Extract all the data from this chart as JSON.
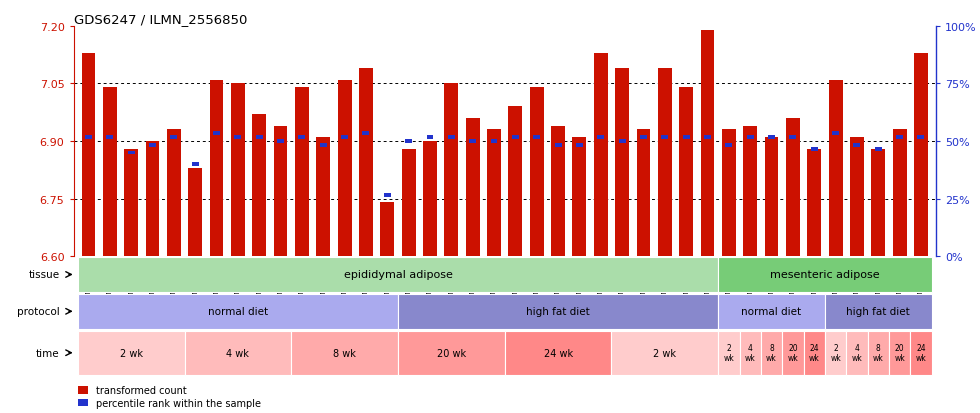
{
  "title": "GDS6247 / ILMN_2556850",
  "samples": [
    "GSM971546",
    "GSM971547",
    "GSM971548",
    "GSM971549",
    "GSM971550",
    "GSM971551",
    "GSM971552",
    "GSM971553",
    "GSM971554",
    "GSM971555",
    "GSM971556",
    "GSM971557",
    "GSM971558",
    "GSM971559",
    "GSM971560",
    "GSM971561",
    "GSM971562",
    "GSM971563",
    "GSM971564",
    "GSM971565",
    "GSM971566",
    "GSM971567",
    "GSM971568",
    "GSM971569",
    "GSM971570",
    "GSM971571",
    "GSM971572",
    "GSM971573",
    "GSM971574",
    "GSM971575",
    "GSM971576",
    "GSM971577",
    "GSM971578",
    "GSM971579",
    "GSM971580",
    "GSM971581",
    "GSM971582",
    "GSM971583",
    "GSM971584",
    "GSM971585"
  ],
  "transformed_count": [
    7.13,
    7.04,
    6.88,
    6.9,
    6.93,
    6.83,
    7.06,
    7.05,
    6.97,
    6.94,
    7.04,
    6.91,
    7.06,
    7.09,
    6.74,
    6.88,
    6.9,
    7.05,
    6.96,
    6.93,
    6.99,
    7.04,
    6.94,
    6.91,
    7.13,
    7.09,
    6.93,
    7.09,
    7.04,
    7.19,
    6.93,
    6.94,
    6.91,
    6.96,
    6.88,
    7.06,
    6.91,
    6.88,
    6.93,
    7.13
  ],
  "percentile_rank": [
    6.91,
    6.91,
    6.87,
    6.89,
    6.91,
    6.84,
    6.92,
    6.91,
    6.91,
    6.9,
    6.91,
    6.89,
    6.91,
    6.92,
    6.76,
    6.9,
    6.91,
    6.91,
    6.9,
    6.9,
    6.91,
    6.91,
    6.89,
    6.89,
    6.91,
    6.9,
    6.91,
    6.91,
    6.91,
    6.91,
    6.89,
    6.91,
    6.91,
    6.91,
    6.88,
    6.92,
    6.89,
    6.88,
    6.91,
    6.91
  ],
  "ylim": [
    6.6,
    7.2
  ],
  "yticks": [
    6.6,
    6.75,
    6.9,
    7.05,
    7.2
  ],
  "right_yticks": [
    0,
    25,
    50,
    75,
    100
  ],
  "bar_color": "#CC1100",
  "blue_color": "#2233CC",
  "tissue_groups": [
    {
      "label": "epididymal adipose",
      "start": 0,
      "end": 29,
      "color": "#AADDAA"
    },
    {
      "label": "mesenteric adipose",
      "start": 30,
      "end": 39,
      "color": "#77CC77"
    }
  ],
  "protocol_groups": [
    {
      "label": "normal diet",
      "start": 0,
      "end": 14,
      "color": "#AAAAEE"
    },
    {
      "label": "high fat diet",
      "start": 15,
      "end": 29,
      "color": "#8888CC"
    },
    {
      "label": "normal diet",
      "start": 30,
      "end": 34,
      "color": "#AAAAEE"
    },
    {
      "label": "high fat diet",
      "start": 35,
      "end": 39,
      "color": "#8888CC"
    }
  ],
  "time_groups": [
    {
      "label": "2 wk",
      "start": 0,
      "end": 4,
      "color": "#FFCCCC"
    },
    {
      "label": "4 wk",
      "start": 5,
      "end": 9,
      "color": "#FFBBBB"
    },
    {
      "label": "8 wk",
      "start": 10,
      "end": 14,
      "color": "#FFAAAA"
    },
    {
      "label": "20 wk",
      "start": 15,
      "end": 19,
      "color": "#FF9999"
    },
    {
      "label": "24 wk",
      "start": 20,
      "end": 24,
      "color": "#FF8888"
    },
    {
      "label": "2 wk",
      "start": 25,
      "end": 29,
      "color": "#FFCCCC"
    },
    {
      "label": "2\nwk",
      "start": 30,
      "end": 30,
      "color": "#FFCCCC"
    },
    {
      "label": "4\nwk",
      "start": 31,
      "end": 31,
      "color": "#FFBBBB"
    },
    {
      "label": "8\nwk",
      "start": 32,
      "end": 32,
      "color": "#FFAAAA"
    },
    {
      "label": "20\nwk",
      "start": 33,
      "end": 33,
      "color": "#FF9999"
    },
    {
      "label": "24\nwk",
      "start": 34,
      "end": 34,
      "color": "#FF8888"
    },
    {
      "label": "2\nwk",
      "start": 35,
      "end": 35,
      "color": "#FFCCCC"
    },
    {
      "label": "4\nwk",
      "start": 36,
      "end": 36,
      "color": "#FFBBBB"
    },
    {
      "label": "8\nwk",
      "start": 37,
      "end": 37,
      "color": "#FFAAAA"
    },
    {
      "label": "20\nwk",
      "start": 38,
      "end": 38,
      "color": "#FF9999"
    },
    {
      "label": "24\nwk",
      "start": 39,
      "end": 39,
      "color": "#FF8888"
    }
  ],
  "grid_dotted": [
    6.75,
    6.9,
    7.05
  ],
  "bg_color": "#FFFFFF"
}
